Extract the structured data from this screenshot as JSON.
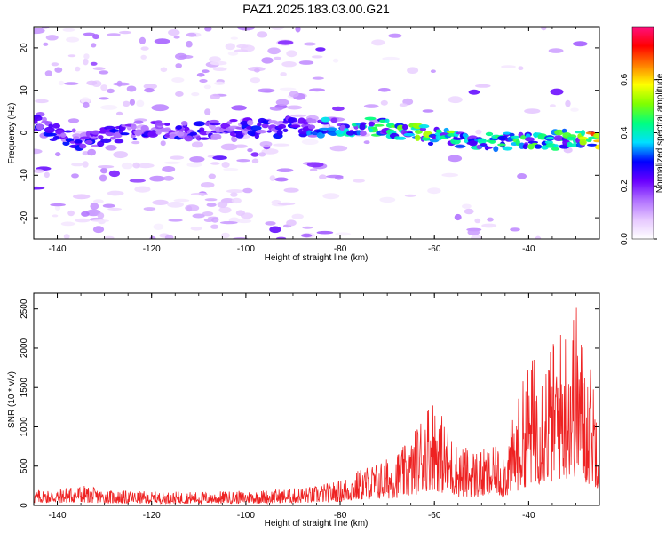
{
  "title": "PAZ1.2025.183.03.00.G21",
  "chart_data": [
    {
      "type": "heatmap",
      "xlabel": "Height of straight line (km)",
      "ylabel": "Frequency (Hz)",
      "xlim": [
        -145,
        -25
      ],
      "ylim": [
        -25,
        25
      ],
      "x_ticks": [
        -140,
        -120,
        -100,
        -80,
        -60,
        -40
      ],
      "x_tick_labels": [
        "-140",
        "-120",
        "-100",
        "-80",
        "-60",
        "-40"
      ],
      "y_ticks": [
        -20,
        -10,
        0,
        10,
        20
      ],
      "y_tick_labels": [
        "-20",
        "-10",
        "0",
        "10",
        "20"
      ],
      "colorbar": {
        "label": "Normalized spectral amplitude",
        "range": [
          0,
          0.8
        ],
        "ticks": [
          0,
          0.2,
          0.4,
          0.6
        ],
        "tick_labels": [
          "0.0",
          "0.2",
          "0.4",
          "0.6"
        ],
        "colormap": [
          "#ffffff",
          "#e6c8ff",
          "#b070ff",
          "#6a00ff",
          "#0000ff",
          "#00e0ff",
          "#00ff80",
          "#80ff00",
          "#ffff00",
          "#ff8000",
          "#ff0000",
          "#ff1080"
        ]
      },
      "ridge": {
        "x": [
          -145,
          -140,
          -135,
          -130,
          -125,
          -120,
          -115,
          -110,
          -105,
          -100,
          -95,
          -90,
          -85,
          -80,
          -75,
          -70,
          -65,
          -60,
          -55,
          -50,
          -45,
          -40,
          -35,
          -30,
          -25
        ],
        "freq": [
          2,
          0,
          -2,
          -1,
          0,
          1,
          0,
          0.5,
          1,
          1,
          1,
          1.5,
          1,
          1.5,
          1.5,
          1,
          0.5,
          -1,
          -1.5,
          -1.5,
          -2,
          -2,
          -2,
          -1,
          -2
        ],
        "amplitude": [
          0.3,
          0.3,
          0.3,
          0.3,
          0.3,
          0.3,
          0.3,
          0.3,
          0.3,
          0.3,
          0.3,
          0.35,
          0.35,
          0.45,
          0.45,
          0.5,
          0.55,
          0.55,
          0.5,
          0.5,
          0.5,
          0.5,
          0.5,
          0.5,
          0.8
        ]
      }
    },
    {
      "type": "line",
      "xlabel": "Height of straight line (km)",
      "ylabel": "SNR (10 * v/v)",
      "xlim": [
        -145,
        -25
      ],
      "ylim": [
        0,
        2700
      ],
      "x_ticks": [
        -140,
        -120,
        -100,
        -80,
        -60,
        -40
      ],
      "x_tick_labels": [
        "-140",
        "-120",
        "-100",
        "-80",
        "-60",
        "-40"
      ],
      "y_ticks": [
        0,
        500,
        1000,
        1500,
        2000,
        2500
      ],
      "y_tick_labels": [
        "0",
        "500",
        "1000",
        "1500",
        "2000",
        "2500"
      ],
      "color": "#ee2222",
      "envelope_x": [
        -145,
        -140,
        -135,
        -130,
        -120,
        -110,
        -100,
        -90,
        -85,
        -80,
        -75,
        -70,
        -65,
        -62,
        -60,
        -58,
        -55,
        -50,
        -45,
        -42,
        -40,
        -38,
        -35,
        -33,
        -30,
        -28,
        -25
      ],
      "envelope_y": [
        180,
        200,
        240,
        180,
        160,
        160,
        170,
        200,
        230,
        300,
        450,
        550,
        750,
        1200,
        1300,
        1000,
        700,
        650,
        700,
        1300,
        1700,
        1800,
        1900,
        2100,
        2400,
        1800,
        1400
      ]
    }
  ]
}
